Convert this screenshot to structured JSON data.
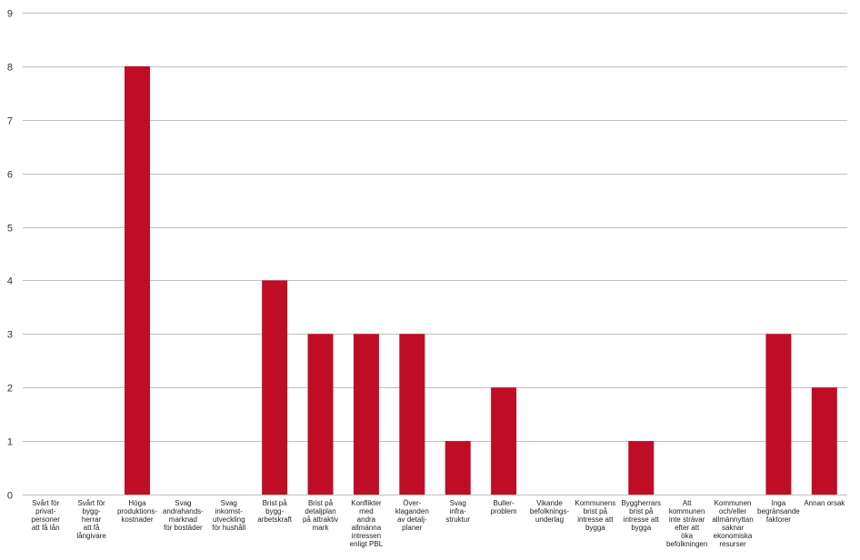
{
  "chart_data": {
    "type": "bar",
    "categories": [
      [
        "Svårt för",
        "privat-",
        "personer",
        "att få lån"
      ],
      [
        "Svårt för",
        "bygg-",
        "herrar",
        "att få",
        "långivare"
      ],
      [
        "Höga",
        "produktions-",
        "kostnader"
      ],
      [
        "Svag",
        "andrahands-",
        "marknad",
        "för bostäder"
      ],
      [
        "Svag",
        "inkomst-",
        "utveckling",
        "för hushåll"
      ],
      [
        "Brist på",
        "bygg-",
        "arbetskraft"
      ],
      [
        "Brist på",
        "detaljplan",
        "på attraktiv",
        "mark"
      ],
      [
        "Konflikter",
        "med",
        "andra",
        "allmänna",
        "intressen",
        "enligt PBL"
      ],
      [
        "Över-",
        "klaganden",
        "av detalj-",
        "planer"
      ],
      [
        "Svag",
        "infra-",
        "struktur"
      ],
      [
        "Buller-",
        "problem"
      ],
      [
        "Vikande",
        "befolknings-",
        "underlag"
      ],
      [
        "Kommunens",
        "brist på",
        "intresse att",
        "bygga"
      ],
      [
        "Byggherrars",
        "brist på",
        "intresse att",
        "bygga"
      ],
      [
        "Att",
        "kommunen",
        "inte strävar",
        "efter att",
        "öka",
        "befolkningen"
      ],
      [
        "Kommunen",
        "och/eller",
        "allmännyttan",
        "saknar",
        "ekonomiska",
        "resurser"
      ],
      [
        "Inga",
        "begränsande",
        "faktorer"
      ],
      [
        "Annan orsak"
      ]
    ],
    "values": [
      0,
      0,
      8,
      0,
      0,
      4,
      3,
      3,
      3,
      1,
      2,
      0,
      0,
      1,
      0,
      0,
      3,
      2
    ],
    "ylim": [
      0,
      9
    ],
    "yticks": [
      0,
      1,
      2,
      3,
      4,
      5,
      6,
      7,
      8,
      9
    ],
    "grid": true,
    "bar_color": "#c00d26",
    "grid_color": "#bfbfbf"
  }
}
